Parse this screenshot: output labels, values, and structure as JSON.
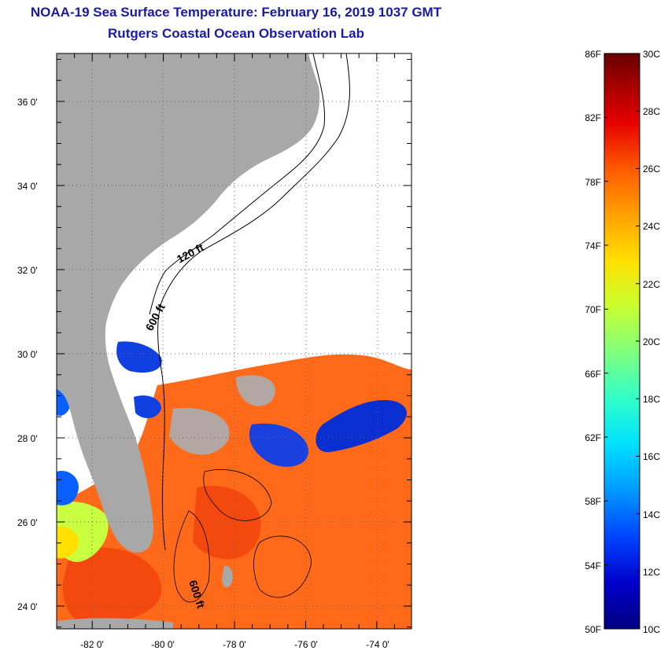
{
  "header": {
    "title": "NOAA-19 Sea Surface Temperature:  February 16, 2019 1037 GMT",
    "subtitle": "Rutgers Coastal Ocean Observation Lab"
  },
  "map": {
    "lat_labels": [
      "36 0'",
      "34 0'",
      "32 0'",
      "30 0'",
      "28 0'",
      "26 0'",
      "24 0'"
    ],
    "lon_labels": [
      "-82 0'",
      "-80 0'",
      "-78 0'",
      "-76 0'",
      "-74 0'"
    ],
    "contours": [
      {
        "label": "120 ft"
      },
      {
        "label": "600 ft"
      },
      {
        "label": "600 ft"
      }
    ]
  },
  "colorbar": {
    "fahrenheit": [
      "86F",
      "82F",
      "78F",
      "74F",
      "70F",
      "66F",
      "62F",
      "58F",
      "54F",
      "50F"
    ],
    "celsius": [
      "30C",
      "28C",
      "26C",
      "24C",
      "22C",
      "20C",
      "18C",
      "16C",
      "14C",
      "12C",
      "10C"
    ],
    "colors": [
      "#000080",
      "#0000cc",
      "#0044ff",
      "#0099ff",
      "#00e0ff",
      "#30ffc8",
      "#7fff7f",
      "#c8ff30",
      "#ffe000",
      "#ffa000",
      "#ff5a00",
      "#e60000",
      "#a00000",
      "#660000"
    ]
  },
  "colors": {
    "title": "#1a1aa8",
    "land": "#a8a8a8",
    "water_no_data": "#ffffff",
    "warm_water": "#ff6a1a",
    "cold_water": "#0a2fd0"
  }
}
